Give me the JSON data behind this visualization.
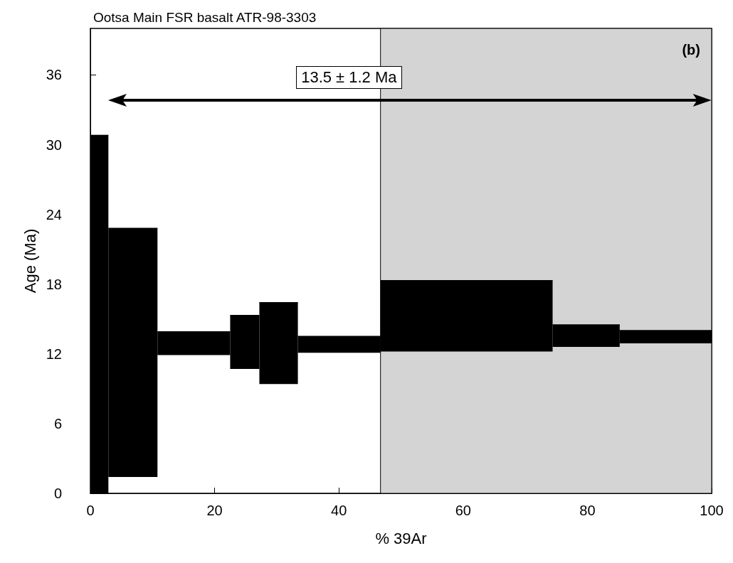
{
  "chart_data": {
    "type": "bar",
    "title": "Ootsa Main FSR basalt ATR-98-3303",
    "xlabel": "% 39Ar",
    "ylabel": "Age (Ma)",
    "x": [
      1.45,
      6.85,
      16.65,
      24.85,
      30.3,
      40.05,
      60.55,
      79.8,
      92.6
    ],
    "xerrors": [
      1.45,
      3.95,
      5.85,
      2.35,
      3.1,
      6.65,
      13.85,
      5.4,
      7.4
    ],
    "base": [
      0,
      1.4,
      11.9,
      10.7,
      9.4,
      12.1,
      12.2,
      12.6,
      12.9
    ],
    "values": [
      30.8,
      21.4,
      2.0,
      4.6,
      7.0,
      1.4,
      6.1,
      1.9,
      1.1
    ],
    "color": "#000000",
    "xlim": [
      0,
      100
    ],
    "xticks": [
      0,
      20,
      40,
      60,
      80,
      100
    ],
    "ylim": [
      0,
      40
    ],
    "yticks": [
      0,
      6,
      12,
      18,
      24,
      30,
      36
    ],
    "ref_lines": [
      {
        "axis": "y",
        "value": 33.8,
        "label": "13.5 ± 1.2 Ma"
      }
    ],
    "bands": [
      {
        "axis": "x",
        "from": 46.7,
        "to": 100,
        "color": "#d4d4d4"
      }
    ],
    "annotations": [
      "(b)"
    ]
  }
}
